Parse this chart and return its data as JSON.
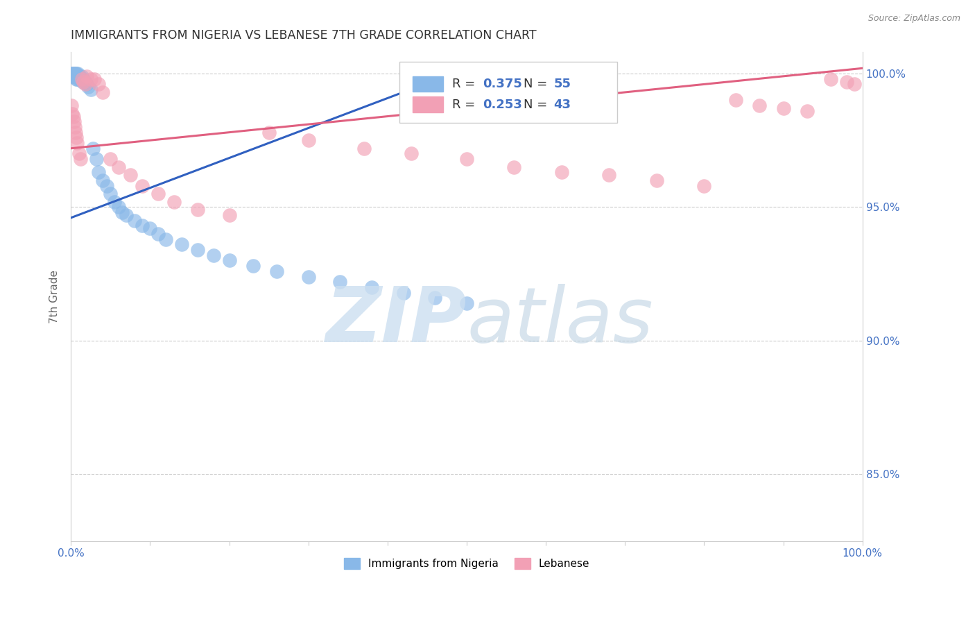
{
  "title": "IMMIGRANTS FROM NIGERIA VS LEBANESE 7TH GRADE CORRELATION CHART",
  "source": "Source: ZipAtlas.com",
  "ylabel": "7th Grade",
  "xlim": [
    0.0,
    1.0
  ],
  "ylim": [
    0.825,
    1.008
  ],
  "ytick_pos": [
    0.85,
    0.9,
    0.95,
    1.0
  ],
  "ytick_labels": [
    "85.0%",
    "90.0%",
    "95.0%",
    "100.0%"
  ],
  "xtick_pos": [
    0.0,
    0.1,
    0.2,
    0.3,
    0.4,
    0.5,
    0.6,
    0.7,
    0.8,
    0.9,
    1.0
  ],
  "xtick_labels": [
    "0.0%",
    "",
    "",
    "",
    "",
    "",
    "",
    "",
    "",
    "",
    "100.0%"
  ],
  "nigeria_color": "#89b8e8",
  "lebanese_color": "#f2a0b5",
  "nigeria_line_color": "#3060c0",
  "lebanese_line_color": "#e06080",
  "nigeria_R": 0.375,
  "nigeria_N": 55,
  "lebanese_R": 0.253,
  "lebanese_N": 43,
  "nigeria_x": [
    0.001,
    0.002,
    0.002,
    0.003,
    0.003,
    0.004,
    0.004,
    0.005,
    0.005,
    0.006,
    0.006,
    0.007,
    0.007,
    0.008,
    0.008,
    0.009,
    0.01,
    0.01,
    0.011,
    0.012,
    0.013,
    0.014,
    0.015,
    0.016,
    0.018,
    0.02,
    0.022,
    0.025,
    0.028,
    0.032,
    0.035,
    0.04,
    0.045,
    0.05,
    0.055,
    0.06,
    0.065,
    0.07,
    0.08,
    0.09,
    0.1,
    0.11,
    0.12,
    0.14,
    0.16,
    0.18,
    0.2,
    0.23,
    0.26,
    0.3,
    0.34,
    0.38,
    0.42,
    0.46,
    0.5
  ],
  "nigeria_y": [
    1.0,
    1.0,
    0.999,
    1.0,
    0.999,
    1.0,
    0.999,
    1.0,
    0.999,
    1.0,
    0.999,
    0.998,
    1.0,
    0.999,
    0.998,
    1.0,
    0.999,
    0.998,
    0.999,
    0.998,
    0.998,
    0.999,
    0.997,
    0.998,
    0.997,
    0.996,
    0.995,
    0.994,
    0.972,
    0.968,
    0.963,
    0.96,
    0.958,
    0.955,
    0.952,
    0.95,
    0.948,
    0.947,
    0.945,
    0.943,
    0.942,
    0.94,
    0.938,
    0.936,
    0.934,
    0.932,
    0.93,
    0.928,
    0.926,
    0.924,
    0.922,
    0.92,
    0.918,
    0.916,
    0.914
  ],
  "lebanese_x": [
    0.001,
    0.002,
    0.003,
    0.004,
    0.005,
    0.006,
    0.007,
    0.008,
    0.01,
    0.012,
    0.014,
    0.016,
    0.018,
    0.02,
    0.025,
    0.03,
    0.035,
    0.04,
    0.05,
    0.06,
    0.075,
    0.09,
    0.11,
    0.13,
    0.16,
    0.2,
    0.25,
    0.3,
    0.37,
    0.43,
    0.5,
    0.56,
    0.62,
    0.68,
    0.74,
    0.8,
    0.84,
    0.87,
    0.9,
    0.93,
    0.96,
    0.98,
    0.99
  ],
  "lebanese_y": [
    0.988,
    0.985,
    0.984,
    0.982,
    0.98,
    0.978,
    0.976,
    0.974,
    0.97,
    0.968,
    0.998,
    0.997,
    0.996,
    0.999,
    0.998,
    0.998,
    0.996,
    0.993,
    0.968,
    0.965,
    0.962,
    0.958,
    0.955,
    0.952,
    0.949,
    0.947,
    0.978,
    0.975,
    0.972,
    0.97,
    0.968,
    0.965,
    0.963,
    0.962,
    0.96,
    0.958,
    0.99,
    0.988,
    0.987,
    0.986,
    0.998,
    0.997,
    0.996
  ],
  "nigeria_trend_x": [
    0.0,
    0.5
  ],
  "nigeria_trend_y": [
    0.946,
    1.002
  ],
  "lebanese_trend_x": [
    0.0,
    1.0
  ],
  "lebanese_trend_y": [
    0.972,
    1.002
  ],
  "watermark_zip": "ZIP",
  "watermark_atlas": "atlas",
  "background_color": "#ffffff",
  "grid_color": "#cccccc",
  "axis_color": "#4472c4",
  "title_color": "#333333",
  "source_color": "#888888"
}
